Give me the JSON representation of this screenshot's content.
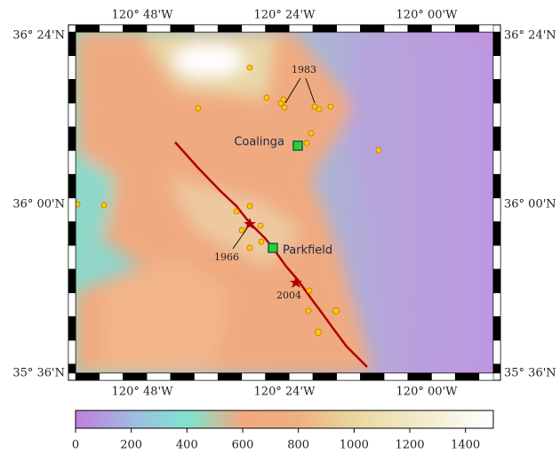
{
  "map": {
    "lon_labels": [
      "120° 48'W",
      "120° 24'W",
      "120° 00'W"
    ],
    "lat_labels": [
      "36° 24'N",
      "36° 00'N",
      "35° 36'N"
    ],
    "places": [
      "Coalinga",
      "Parkfield"
    ],
    "events": [
      "1983",
      "1966",
      "2004"
    ],
    "colorbar": {
      "lim": [
        0,
        1500
      ],
      "ticks": [
        0,
        200,
        400,
        600,
        800,
        1000,
        1200,
        1400
      ]
    }
  }
}
